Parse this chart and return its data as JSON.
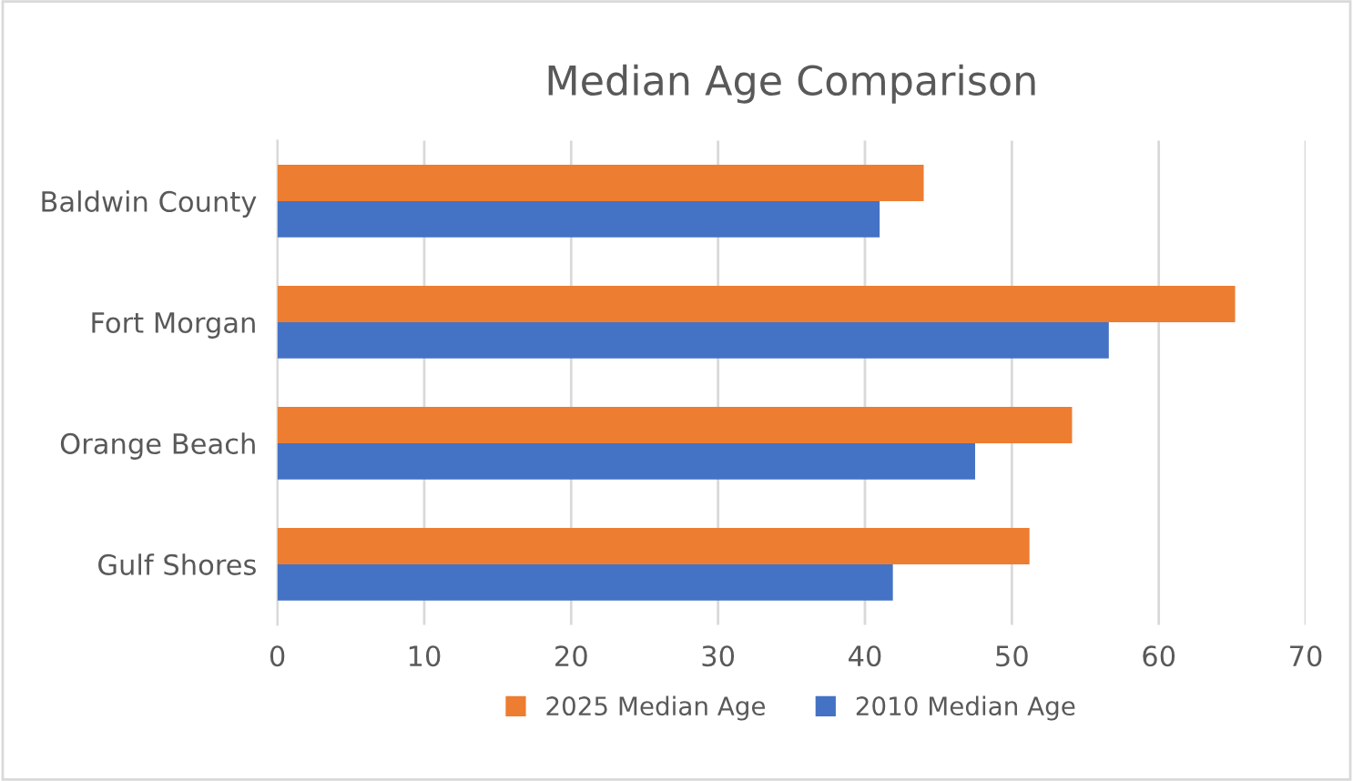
{
  "chart_data": {
    "type": "bar",
    "orientation": "horizontal",
    "title": "Median Age Comparison",
    "categories": [
      "Baldwin County",
      "Fort Morgan",
      "Orange Beach",
      "Gulf Shores"
    ],
    "series": [
      {
        "name": "2025 Median Age",
        "color": "#ed7d31",
        "values": [
          44.0,
          65.2,
          54.1,
          51.2
        ]
      },
      {
        "name": "2010 Median Age",
        "color": "#4472c4",
        "values": [
          41.0,
          56.6,
          47.5,
          41.9
        ]
      }
    ],
    "xlim": [
      0,
      70
    ],
    "xticks": [
      0,
      10,
      20,
      30,
      40,
      50,
      60,
      70
    ],
    "grid": "x",
    "legend": "bottom"
  }
}
